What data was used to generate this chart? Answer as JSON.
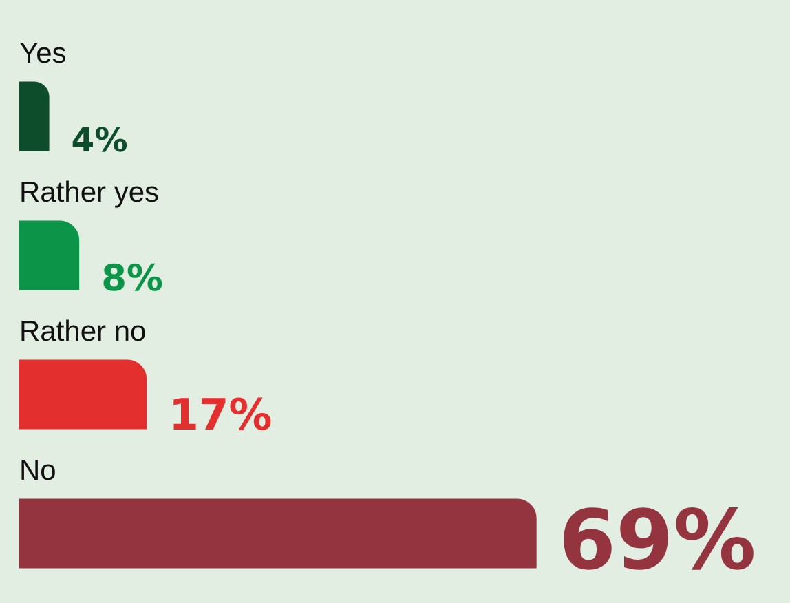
{
  "chart_data": {
    "type": "bar",
    "orientation": "horizontal",
    "categories": [
      "Yes",
      "Rather yes",
      "Rather no",
      "No"
    ],
    "values": [
      4,
      8,
      17,
      69
    ],
    "colors": [
      "#0d4d2b",
      "#0c9448",
      "#e3302f",
      "#93343f"
    ],
    "value_labels": [
      "4%",
      "8%",
      "17%",
      "69%"
    ],
    "legend": false
  }
}
